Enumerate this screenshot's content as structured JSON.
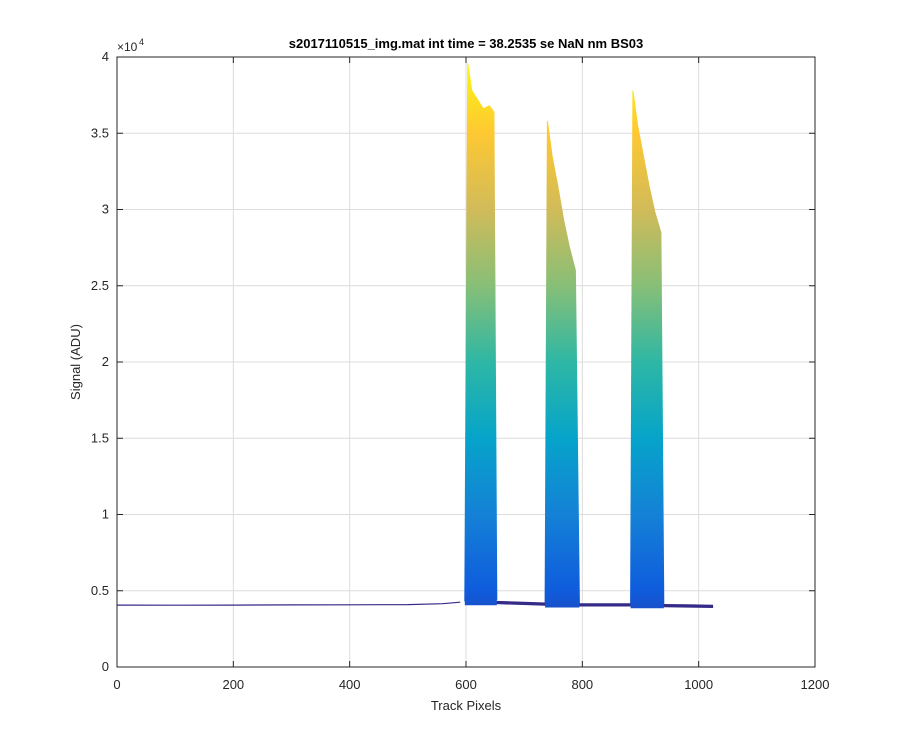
{
  "chart_data": {
    "type": "area",
    "title": "s2017110515_img.mat int time = 38.2535 se  NaN nm BS03",
    "xlabel": "Track Pixels",
    "ylabel": "Signal (ADU)",
    "xlim": [
      0,
      1200
    ],
    "ylim": [
      0,
      40000
    ],
    "y_exponent_label": "×10",
    "y_exponent_power": "4",
    "x_ticks": [
      0,
      200,
      400,
      600,
      800,
      1000,
      1200
    ],
    "x_tick_labels": [
      "0",
      "200",
      "400",
      "600",
      "800",
      "1000",
      "1200"
    ],
    "y_ticks": [
      0,
      5000,
      10000,
      15000,
      20000,
      25000,
      30000,
      35000,
      40000
    ],
    "y_tick_labels": [
      "0",
      "0.5",
      "1",
      "1.5",
      "2",
      "2.5",
      "3",
      "3.5",
      "4"
    ],
    "grid": true,
    "colormap": [
      "#352a87",
      "#0f5cdd",
      "#1481d6",
      "#06a4ca",
      "#2eb7a4",
      "#87bf77",
      "#d1bb59",
      "#fec832",
      "#f9fb0e"
    ],
    "baseline": {
      "x": [
        0,
        100,
        200,
        300,
        400,
        500,
        560,
        590
      ],
      "y": [
        4060,
        4050,
        4060,
        4070,
        4080,
        4090,
        4150,
        4250
      ]
    },
    "peaks": [
      {
        "x": [
          598,
          603,
          610,
          620,
          630,
          640,
          648,
          653
        ],
        "y": [
          4300,
          39600,
          37800,
          37200,
          36600,
          36800,
          36400,
          4400
        ]
      },
      {
        "x": [
          736,
          740,
          748,
          758,
          768,
          778,
          788,
          795
        ],
        "y": [
          4200,
          35800,
          33500,
          31500,
          29300,
          27500,
          26000,
          4150
        ]
      },
      {
        "x": [
          883,
          887,
          895,
          905,
          915,
          925,
          935,
          940
        ],
        "y": [
          4150,
          37800,
          35500,
          33500,
          31500,
          29800,
          28500,
          4100
        ]
      }
    ],
    "gaps": [
      {
        "x": [
          653,
          700,
          736
        ],
        "y": [
          4300,
          4250,
          4200
        ]
      },
      {
        "x": [
          795,
          840,
          883
        ],
        "y": [
          4150,
          4150,
          4150
        ]
      },
      {
        "x": [
          940,
          980,
          1024
        ],
        "y": [
          4100,
          4080,
          4050
        ]
      }
    ]
  }
}
